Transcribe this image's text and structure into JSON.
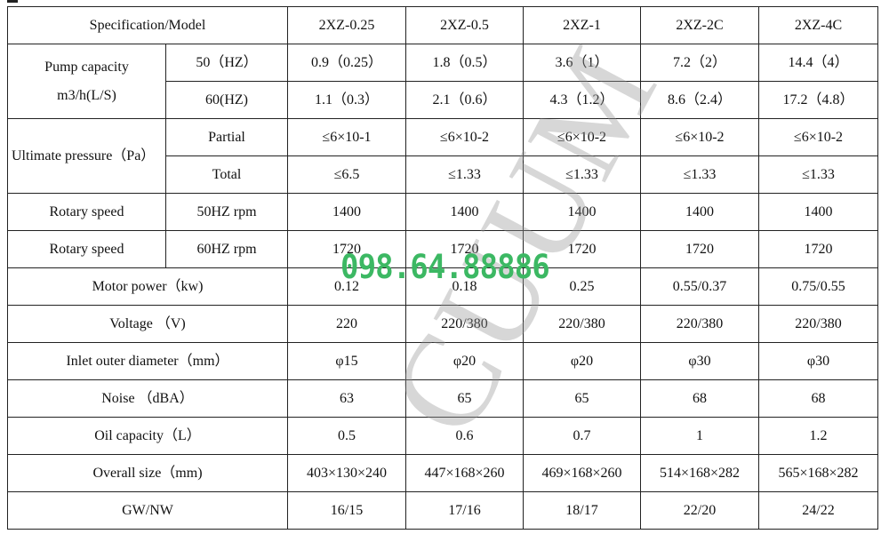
{
  "header": {
    "spec_label": "Specification/Model",
    "models": [
      "2XZ-0.25",
      "2XZ-0.5",
      "2XZ-1",
      "2XZ-2C",
      "2XZ-4C"
    ]
  },
  "pump_capacity": {
    "label": "Pump capacity",
    "unit": "m3/h(L/S)",
    "rows": [
      {
        "sub": "50（HZ）",
        "values": [
          "0.9（0.25）",
          "1.8（0.5）",
          "3.6（1）",
          "7.2（2）",
          "14.4（4）"
        ]
      },
      {
        "sub": "60(HZ)",
        "values": [
          "1.1（0.3）",
          "2.1（0.6）",
          "4.3（1.2）",
          "8.6（2.4）",
          "17.2（4.8）"
        ]
      }
    ]
  },
  "ultimate_pressure": {
    "label": "Ultimate pressure（Pa）",
    "rows": [
      {
        "sub": "Partial",
        "values": [
          "≤6×10-1",
          "≤6×10-2",
          "≤6×10-2",
          "≤6×10-2",
          "≤6×10-2"
        ]
      },
      {
        "sub": "Total",
        "values": [
          "≤6.5",
          "≤1.33",
          "≤1.33",
          "≤1.33",
          "≤1.33"
        ]
      }
    ]
  },
  "rotary": [
    {
      "label": "Rotary speed",
      "sub": "50HZ rpm",
      "values": [
        "1400",
        "1400",
        "1400",
        "1400",
        "1400"
      ]
    },
    {
      "label": "Rotary speed",
      "sub": "60HZ rpm",
      "values": [
        "1720",
        "1720",
        "1720",
        "1720",
        "1720"
      ]
    }
  ],
  "rows": [
    {
      "label": "Motor power（kw)",
      "values": [
        "0.12",
        "0.18",
        "0.25",
        "0.55/0.37",
        "0.75/0.55"
      ]
    },
    {
      "label": "Voltage （V)",
      "values": [
        "220",
        "220/380",
        "220/380",
        "220/380",
        "220/380"
      ]
    },
    {
      "label": "Inlet outer diameter（mm）",
      "values": [
        "φ15",
        "φ20",
        "φ20",
        "φ30",
        "φ30"
      ]
    },
    {
      "label": "Noise （dBA）",
      "values": [
        "63",
        "65",
        "65",
        "68",
        "68"
      ]
    },
    {
      "label": "Oil capacity（L）",
      "values": [
        "0.5",
        "0.6",
        "0.7",
        "1",
        "1.2"
      ]
    },
    {
      "label": "Overall size（mm)",
      "values": [
        "403×130×240",
        "447×168×260",
        "469×168×260",
        "514×168×282",
        "565×168×282"
      ]
    },
    {
      "label": "GW/NW",
      "values": [
        "16/15",
        "17/16",
        "18/17",
        "22/20",
        "24/22"
      ]
    }
  ],
  "overlay": {
    "phone": "098.64.88886",
    "watermark": "CUUM",
    "phone_color": "#3cb863"
  }
}
